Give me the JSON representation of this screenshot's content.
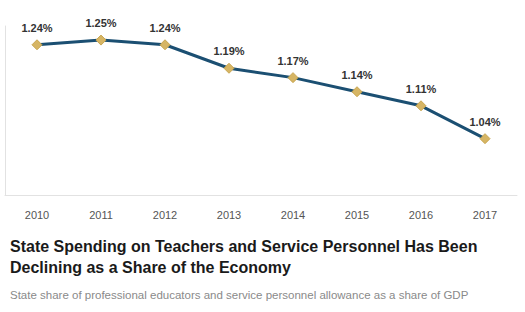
{
  "chart_data": {
    "type": "line",
    "title": "State Spending on Teachers and Service Personnel Has Been Declining as a Share of the Economy",
    "subtitle": "State share of professional educators and service personnel allowance as a share of GDP",
    "categories": [
      "2010",
      "2011",
      "2012",
      "2013",
      "2014",
      "2015",
      "2016",
      "2017"
    ],
    "values": [
      1.24,
      1.25,
      1.24,
      1.19,
      1.17,
      1.14,
      1.11,
      1.04
    ],
    "value_labels": [
      "1.24%",
      "1.25%",
      "1.24%",
      "1.19%",
      "1.17%",
      "1.14%",
      "1.11%",
      "1.04%"
    ],
    "ylim": [
      0.92,
      1.28
    ],
    "color": "#1b4f72",
    "marker": "diamond",
    "data_labels": true,
    "tick_labels": "x",
    "grid": false
  }
}
